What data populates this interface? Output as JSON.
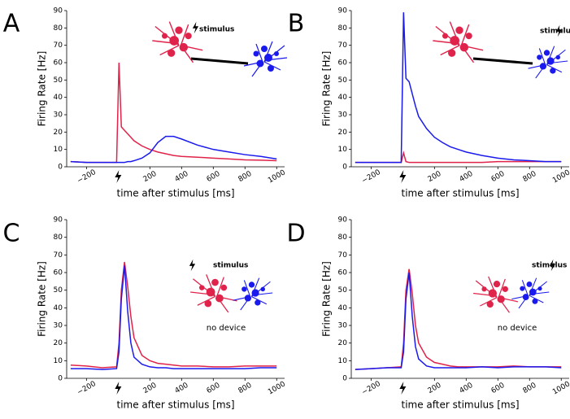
{
  "chart_data": [
    {
      "type": "line",
      "panel": "A",
      "xlabel": "time after stimulus [ms]",
      "ylabel": "Firing Rate [Hz]",
      "annotations": [
        "stimulus"
      ],
      "x": [
        -300,
        -200,
        -100,
        -10,
        5,
        20,
        40,
        60,
        80,
        100,
        150,
        200,
        250,
        300,
        350,
        400,
        500,
        600,
        700,
        800,
        900,
        1000
      ],
      "series": [
        {
          "color": "#e0234a",
          "values": [
            3,
            2.5,
            2.5,
            2.5,
            60,
            23,
            21,
            19,
            17,
            15,
            12,
            10,
            8.5,
            7.5,
            6.5,
            6,
            5.5,
            5,
            4.5,
            4,
            3.8,
            3.5
          ]
        },
        {
          "color": "#1a1aee",
          "values": [
            3,
            2.5,
            2.5,
            2.5,
            2.5,
            2.5,
            2.5,
            3,
            3,
            3.5,
            5,
            8,
            14,
            17.5,
            17.5,
            16,
            12.5,
            10,
            8.5,
            7,
            6,
            4.5
          ]
        }
      ],
      "xlim": [
        -325,
        1050
      ],
      "ylim": [
        0,
        90
      ],
      "xticks": [
        {
          "value": -200,
          "label": "−200"
        },
        200,
        400,
        600,
        800,
        1000
      ],
      "yticks": [
        0,
        10,
        20,
        30,
        40,
        50,
        60,
        70,
        80,
        90
      ]
    },
    {
      "type": "line",
      "panel": "B",
      "xlabel": "time after stimulus [ms]",
      "ylabel": "Firing Rate [Hz]",
      "annotations": [
        "stimulus"
      ],
      "x": [
        -300,
        -200,
        -100,
        -10,
        5,
        20,
        40,
        60,
        80,
        100,
        150,
        200,
        250,
        300,
        350,
        400,
        500,
        600,
        700,
        800,
        900,
        1000
      ],
      "series": [
        {
          "color": "#e0234a",
          "values": [
            2.5,
            2.5,
            2.5,
            2.5,
            8,
            3,
            2.5,
            2.5,
            2.5,
            2.5,
            2.5,
            2.5,
            2.5,
            2.5,
            2.5,
            2.5,
            2.5,
            3,
            3,
            3,
            3,
            3
          ]
        },
        {
          "color": "#1a1aee",
          "values": [
            2.5,
            2.5,
            2.5,
            2.5,
            89,
            51,
            49,
            42,
            35,
            29,
            22,
            17,
            14,
            11.5,
            10,
            8.5,
            6.5,
            5,
            4,
            3.5,
            3,
            3
          ]
        }
      ],
      "xlim": [
        -325,
        1050
      ],
      "ylim": [
        0,
        90
      ],
      "xticks": [
        {
          "value": -200,
          "label": "−200"
        },
        200,
        400,
        600,
        800,
        1000
      ],
      "yticks": [
        0,
        10,
        20,
        30,
        40,
        50,
        60,
        70,
        80,
        90
      ]
    },
    {
      "type": "line",
      "panel": "C",
      "xlabel": "time after stimulus [ms]",
      "ylabel": "Firing Rate [Hz]",
      "annotations": [
        "stimulus",
        "no device"
      ],
      "x": [
        -300,
        -200,
        -100,
        -10,
        5,
        20,
        40,
        60,
        80,
        100,
        150,
        200,
        250,
        300,
        350,
        400,
        500,
        600,
        700,
        800,
        900,
        1000
      ],
      "series": [
        {
          "color": "#e0234a",
          "values": [
            7.5,
            7,
            6,
            6.5,
            20,
            50,
            66,
            52,
            35,
            23,
            13,
            10,
            8.5,
            8,
            7.5,
            7,
            7,
            6.5,
            6.5,
            7,
            7,
            7
          ]
        },
        {
          "color": "#1a1aee",
          "values": [
            5.5,
            5.5,
            5,
            5.5,
            15,
            45,
            64,
            38,
            20,
            12,
            8,
            6.5,
            6,
            6,
            5.5,
            5.5,
            5.5,
            5.5,
            5.5,
            5.5,
            6,
            6
          ]
        }
      ],
      "xlim": [
        -325,
        1050
      ],
      "ylim": [
        0,
        90
      ],
      "xticks": [
        {
          "value": -200,
          "label": "−200"
        },
        200,
        400,
        600,
        800,
        1000
      ],
      "yticks": [
        0,
        10,
        20,
        30,
        40,
        50,
        60,
        70,
        80,
        90
      ]
    },
    {
      "type": "line",
      "panel": "D",
      "xlabel": "time after stimulus [ms]",
      "ylabel": "Firing Rate [Hz]",
      "annotations": [
        "stimulus",
        "no device"
      ],
      "x": [
        -300,
        -200,
        -100,
        -10,
        5,
        20,
        40,
        60,
        80,
        100,
        150,
        200,
        250,
        300,
        350,
        400,
        500,
        600,
        700,
        800,
        900,
        1000
      ],
      "series": [
        {
          "color": "#e0234a",
          "values": [
            5,
            5.5,
            6,
            6.5,
            20,
            50,
            62,
            48,
            30,
            20,
            12,
            9,
            8,
            7,
            6.5,
            6.5,
            6.5,
            6.5,
            7,
            6.5,
            6.5,
            6.5
          ]
        },
        {
          "color": "#1a1aee",
          "values": [
            5,
            5.5,
            6,
            6,
            15,
            45,
            60,
            35,
            18,
            11,
            7,
            6,
            6,
            6,
            6,
            6,
            6.5,
            6,
            6.5,
            6.5,
            6.5,
            6
          ]
        }
      ],
      "xlim": [
        -325,
        1050
      ],
      "ylim": [
        0,
        90
      ],
      "xticks": [
        {
          "value": -200,
          "label": "−200"
        },
        200,
        400,
        600,
        800,
        1000
      ],
      "yticks": [
        0,
        10,
        20,
        30,
        40,
        50,
        60,
        70,
        80,
        90
      ]
    }
  ]
}
